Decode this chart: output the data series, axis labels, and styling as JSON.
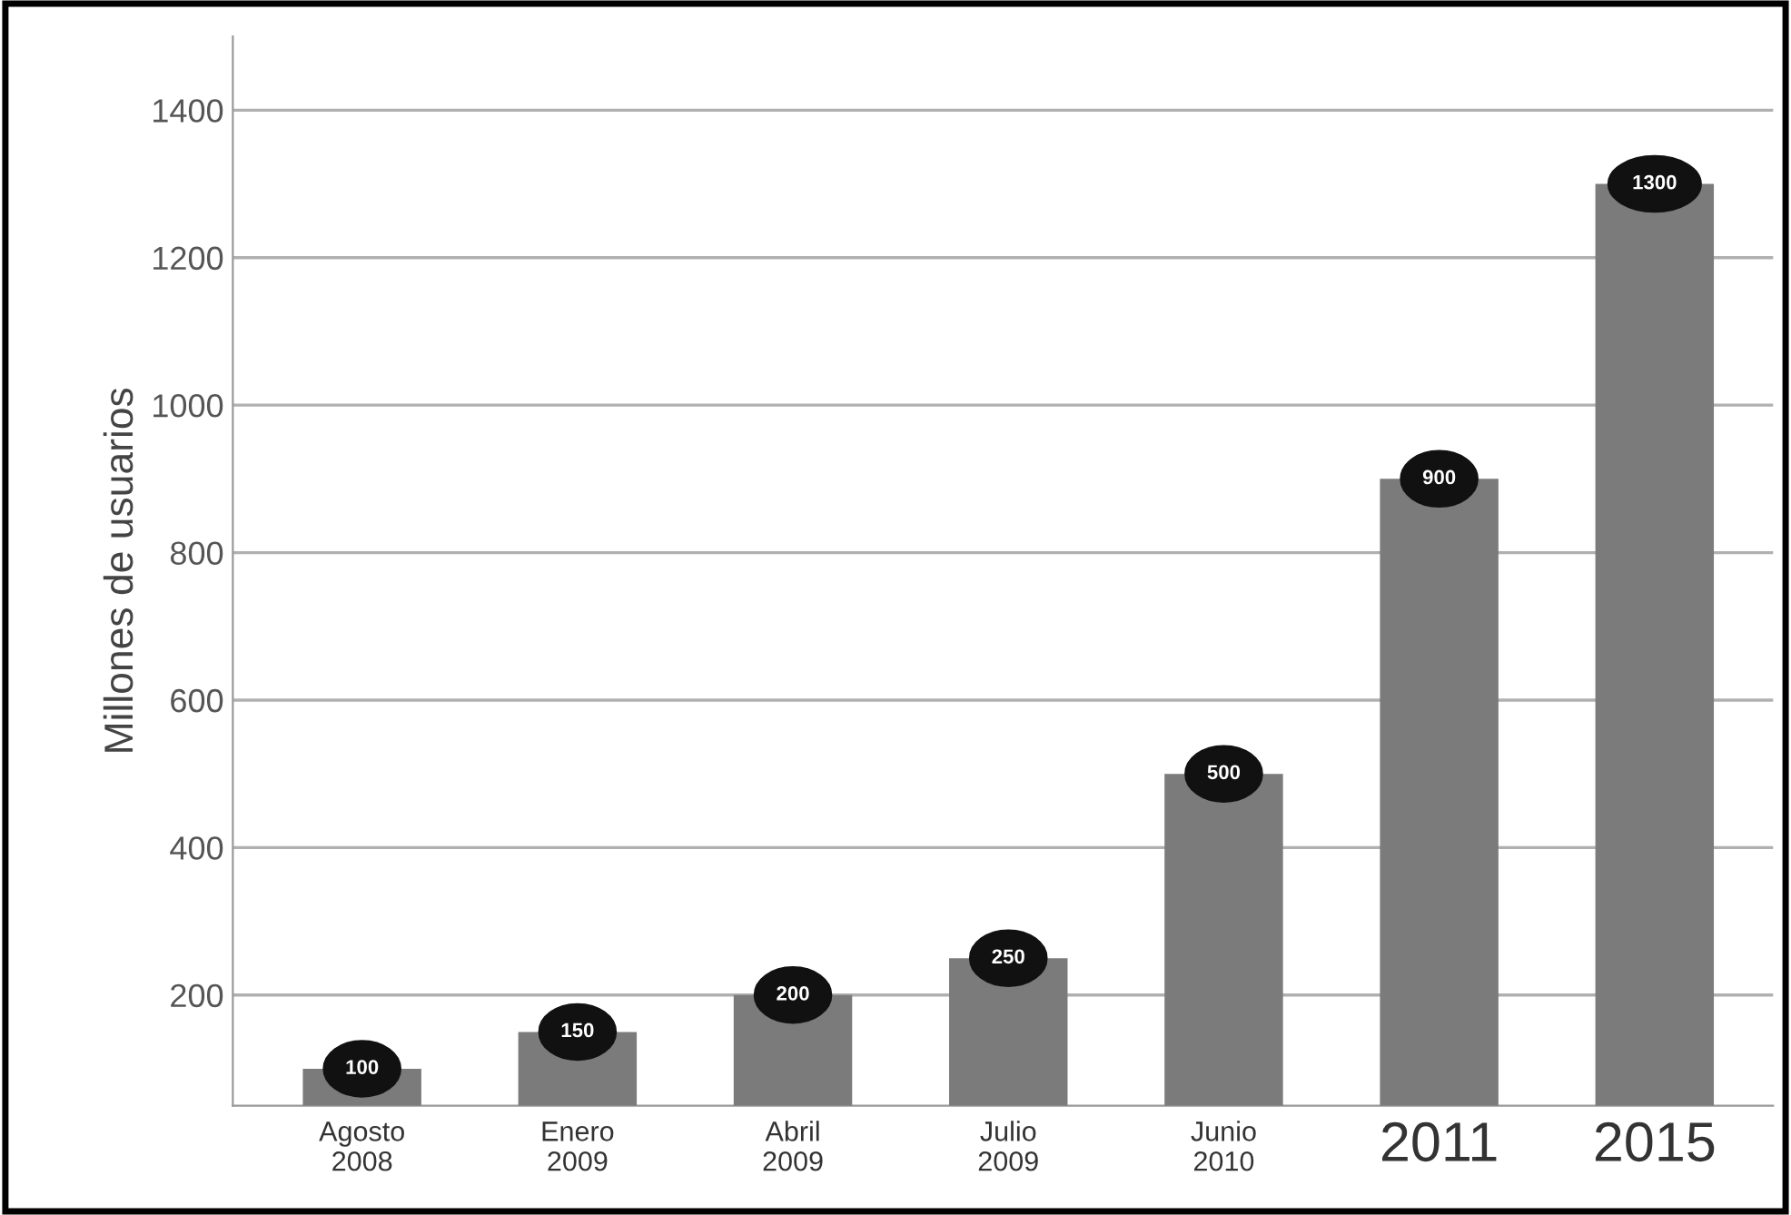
{
  "chart_data": {
    "type": "bar",
    "ylabel": "Millones de usuarios",
    "categories": [
      "Agosto\n2008",
      "Enero\n2009",
      "Abril\n2009",
      "Julio\n2009",
      "Junio\n2010",
      "2011",
      "2015"
    ],
    "values": [
      100,
      150,
      200,
      250,
      500,
      900,
      1300
    ],
    "color": "#7b7b7b",
    "ylim": [
      50,
      1500
    ],
    "yticks": [
      200,
      400,
      600,
      800,
      1000,
      1200,
      1400
    ],
    "grid": "y",
    "data_labels": true
  }
}
